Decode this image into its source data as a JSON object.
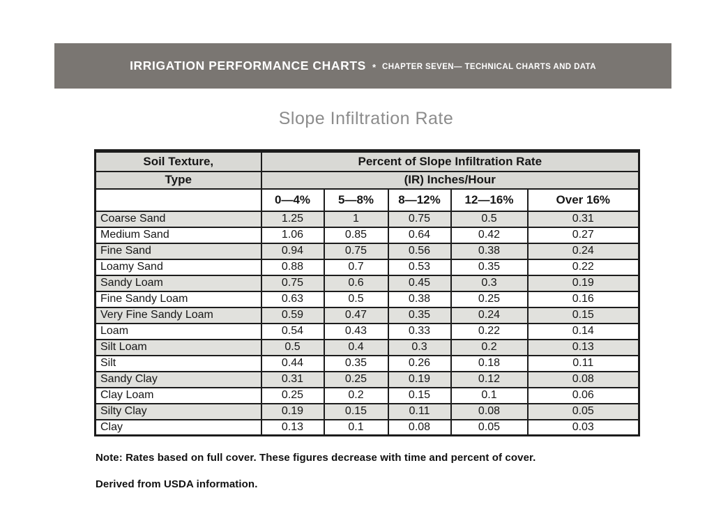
{
  "banner": {
    "title": "IRRIGATION PERFORMANCE CHARTS",
    "separator": "*",
    "subtitle": "CHAPTER SEVEN— TECHNICAL CHARTS AND DATA"
  },
  "chart_data": {
    "type": "table",
    "title": "Slope Infiltration Rate",
    "header": {
      "col1_line1": "Soil Texture,",
      "col1_line2": "Type",
      "span_line1": "Percent of Slope Infiltration Rate",
      "span_line2": "(IR) Inches/Hour",
      "columns": [
        "0—4%",
        "5—8%",
        "8—12%",
        "12—16%",
        "Over 16%"
      ]
    },
    "rows": [
      {
        "type": "Coarse Sand",
        "values": [
          "1.25",
          "1",
          "0.75",
          "0.5",
          "0.31"
        ]
      },
      {
        "type": "Medium Sand",
        "values": [
          "1.06",
          "0.85",
          "0.64",
          "0.42",
          "0.27"
        ]
      },
      {
        "type": "Fine Sand",
        "values": [
          "0.94",
          "0.75",
          "0.56",
          "0.38",
          "0.24"
        ]
      },
      {
        "type": "Loamy Sand",
        "values": [
          "0.88",
          "0.7",
          "0.53",
          "0.35",
          "0.22"
        ]
      },
      {
        "type": "Sandy Loam",
        "values": [
          "0.75",
          "0.6",
          "0.45",
          "0.3",
          "0.19"
        ]
      },
      {
        "type": "Fine Sandy Loam",
        "values": [
          "0.63",
          "0.5",
          "0.38",
          "0.25",
          "0.16"
        ]
      },
      {
        "type": "Very Fine Sandy Loam",
        "values": [
          "0.59",
          "0.47",
          "0.35",
          "0.24",
          "0.15"
        ]
      },
      {
        "type": "Loam",
        "values": [
          "0.54",
          "0.43",
          "0.33",
          "0.22",
          "0.14"
        ]
      },
      {
        "type": "Silt Loam",
        "values": [
          "0.5",
          "0.4",
          "0.3",
          "0.2",
          "0.13"
        ]
      },
      {
        "type": "Silt",
        "values": [
          "0.44",
          "0.35",
          "0.26",
          "0.18",
          "0.11"
        ]
      },
      {
        "type": "Sandy Clay",
        "values": [
          "0.31",
          "0.25",
          "0.19",
          "0.12",
          "0.08"
        ]
      },
      {
        "type": "Clay Loam",
        "values": [
          "0.25",
          "0.2",
          "0.15",
          "0.1",
          "0.06"
        ]
      },
      {
        "type": "Silty Clay",
        "values": [
          "0.19",
          "0.15",
          "0.11",
          "0.08",
          "0.05"
        ]
      },
      {
        "type": "Clay",
        "values": [
          "0.13",
          "0.1",
          "0.08",
          "0.05",
          "0.03"
        ]
      }
    ]
  },
  "notes": {
    "note": "Note: Rates based on full cover. These figures decrease with time and percent of cover.",
    "source": "Derived from USDA information."
  },
  "colors": {
    "banner-bg": "#7a7672",
    "banner-fg": "#ffffff",
    "title-fg": "#8c8c8c",
    "header-shade": "#d9d9d5",
    "row-shade": "#e1e1dd",
    "line": "#1c1c1c",
    "text": "#161616"
  }
}
